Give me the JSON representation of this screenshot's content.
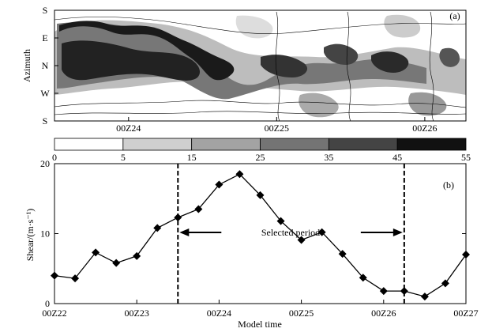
{
  "panel_a": {
    "label": "a",
    "ylabel": "Azimuth",
    "y_ticks": [
      "S",
      "E",
      "N",
      "W",
      "S"
    ],
    "x_ticks": [
      "00Z24",
      "00Z25",
      "00Z26"
    ]
  },
  "colorbar": {
    "levels": [
      "0",
      "5",
      "15",
      "25",
      "35",
      "45",
      "55"
    ],
    "colors": [
      "#ffffff",
      "#cfcfcf",
      "#a3a3a3",
      "#747474",
      "#444444",
      "#111111"
    ]
  },
  "chart_data": {
    "type": "line",
    "panel_label": "b",
    "xlabel": "Model time",
    "ylabel": "Shear/(m·s⁻¹)",
    "x_tick_labels": [
      "00Z22",
      "00Z23",
      "00Z24",
      "00Z25",
      "00Z26",
      "00Z27"
    ],
    "y_tick_labels": [
      "0",
      "10",
      "20"
    ],
    "xlim_days": [
      22,
      27
    ],
    "ylim": [
      0,
      20
    ],
    "x_days": [
      22.0,
      22.25,
      22.5,
      22.75,
      23.0,
      23.25,
      23.5,
      23.75,
      24.0,
      24.25,
      24.5,
      24.75,
      25.0,
      25.25,
      25.5,
      25.75,
      26.0,
      26.25,
      26.5,
      26.75,
      27.0
    ],
    "values": [
      4.0,
      3.6,
      7.3,
      5.8,
      6.8,
      10.8,
      12.3,
      13.5,
      17.0,
      18.5,
      15.5,
      11.8,
      9.1,
      10.2,
      7.1,
      3.7,
      1.8,
      1.8,
      1.0,
      2.9,
      7.0
    ],
    "marker": "diamond",
    "selected_period": {
      "label": "Selected period",
      "start_day": 23.5,
      "end_day": 26.25
    }
  }
}
